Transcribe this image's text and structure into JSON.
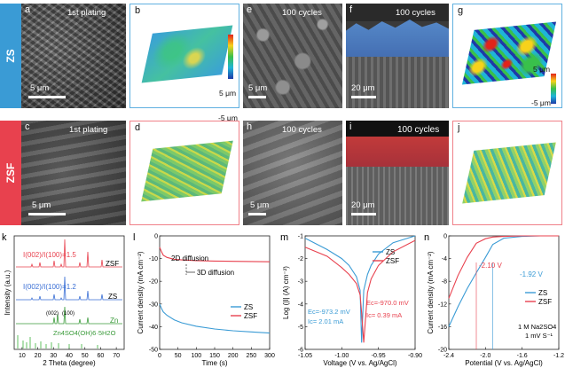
{
  "sidebar": {
    "zs": "ZS",
    "zsf": "ZSF"
  },
  "colors": {
    "zs_blue": "#3a9bd5",
    "zsf_red": "#e8414e",
    "panel_border_blue": "#5fb0e0",
    "panel_border_red": "#f08088"
  },
  "row1": {
    "a": {
      "letter": "a",
      "caption": "1st plating",
      "scale": "5 μm"
    },
    "b": {
      "letter": "b",
      "cb_top": "5 μm",
      "cb_bottom": "-5 μm"
    },
    "e": {
      "letter": "e",
      "caption": "100 cycles",
      "scale": "5 μm"
    },
    "f": {
      "letter": "f",
      "caption": "100 cycles",
      "scale": "20 μm"
    },
    "g": {
      "letter": "g",
      "cb_top": "5 μm",
      "cb_bottom": "-5 μm"
    }
  },
  "row2": {
    "c": {
      "letter": "c",
      "caption": "1st plating",
      "scale": "5 μm"
    },
    "d": {
      "letter": "d"
    },
    "h": {
      "letter": "h",
      "caption": "100 cycles",
      "scale": "5 μm"
    },
    "i": {
      "letter": "i",
      "caption": "100 cycles",
      "scale": "20 μm"
    },
    "j": {
      "letter": "j"
    }
  },
  "panel_k": {
    "letter": "k",
    "xlabel": "2 Theta (degree)",
    "ylabel": "Intensity (a.u.)",
    "xticks": [
      "10",
      "20",
      "30",
      "40",
      "50",
      "60",
      "70"
    ],
    "ratio_zsf": "I(002)/I(100)=1.5",
    "ratio_zs": "I(002)/I(100)=1.2",
    "label_zsf": "ZSF",
    "label_zs": "ZS",
    "label_zn": "Zn",
    "label_ref": "Zn4SO4(OH)6·5H2O",
    "peak_002": "(002)",
    "peak_100": "(100)"
  },
  "panel_l": {
    "letter": "l",
    "xlabel": "Time (s)",
    "ylabel": "Current density (mA cm⁻²)",
    "xticks": [
      "0",
      "50",
      "100",
      "150",
      "200",
      "250",
      "300"
    ],
    "yticks": [
      "0",
      "-10",
      "-20",
      "-30",
      "-40",
      "-50"
    ],
    "ann_2d": "2D diffusion",
    "ann_3d": "3D diffusion",
    "legend": [
      "ZS",
      "ZSF"
    ]
  },
  "panel_m": {
    "letter": "m",
    "xlabel": "Voltage (V vs. Ag/AgCl)",
    "ylabel": "Log (|I| (A) cm⁻²)",
    "xticks": [
      "-1.05",
      "-1.00",
      "-0.95",
      "-0.90"
    ],
    "yticks": [
      "-1",
      "-2",
      "-3",
      "-4",
      "-5",
      "-6"
    ],
    "ec_zs": "Ec=-973.2 mV",
    "ic_zs": "Ic= 2.01 mA",
    "ec_zsf": "Ec=-970.0 mV",
    "ic_zsf": "Ic= 0.39 mA",
    "legend": [
      "ZS",
      "ZSF"
    ]
  },
  "panel_n": {
    "letter": "n",
    "xlabel": "Potential (V vs. Ag/AgCl)",
    "ylabel": "Current density (mA cm⁻²)",
    "xticks": [
      "-2.4",
      "-2.0",
      "-1.6",
      "-1.2"
    ],
    "yticks": [
      "0",
      "-4",
      "-8",
      "-12",
      "-16",
      "-20"
    ],
    "ann_zsf": "-2.10 V",
    "ann_zs": "-1.92 V",
    "legend": [
      "ZS",
      "ZSF"
    ],
    "cond1": "1 M Na2SO4",
    "cond2": "1 mV S⁻¹"
  },
  "chart_data": [
    {
      "type": "line",
      "panel": "l",
      "xlabel": "Time (s)",
      "ylabel": "Current density (mA cm⁻²)",
      "xlim": [
        0,
        300
      ],
      "ylim": [
        -50,
        0
      ],
      "x": [
        0,
        5,
        10,
        20,
        40,
        60,
        100,
        150,
        200,
        250,
        300
      ],
      "series": [
        {
          "name": "ZS",
          "values": [
            -30,
            -32,
            -33.5,
            -35,
            -37,
            -38.3,
            -39.8,
            -41,
            -41.8,
            -42.3,
            -42.8
          ]
        },
        {
          "name": "ZSF",
          "values": [
            -5,
            -7,
            -8.5,
            -9.5,
            -10.3,
            -10.6,
            -10.9,
            -11.1,
            -11.2,
            -11.3,
            -11.4
          ]
        }
      ]
    },
    {
      "type": "line",
      "panel": "m",
      "xlabel": "Voltage (V vs. Ag/AgCl)",
      "ylabel": "Log (|I| (A) cm⁻²)",
      "xlim": [
        -1.05,
        -0.9
      ],
      "ylim": [
        -6,
        -1
      ],
      "x": [
        -1.05,
        -1.02,
        -1.0,
        -0.99,
        -0.98,
        -0.975,
        -0.973,
        -0.97,
        -0.965,
        -0.96,
        -0.95,
        -0.93,
        -0.9
      ],
      "series": [
        {
          "name": "ZS",
          "values": [
            -1.1,
            -1.6,
            -2.0,
            -2.3,
            -2.8,
            -3.4,
            -5.7,
            -3.4,
            -2.7,
            -2.3,
            -1.8,
            -1.3,
            -1.0
          ]
        },
        {
          "name": "ZSF",
          "values": [
            -1.5,
            -1.9,
            -2.4,
            -2.7,
            -3.1,
            -3.6,
            -4.4,
            -5.7,
            -3.5,
            -2.9,
            -2.3,
            -1.7,
            -1.2
          ]
        }
      ]
    },
    {
      "type": "line",
      "panel": "n",
      "xlabel": "Potential (V vs. Ag/AgCl)",
      "ylabel": "Current density (mA cm⁻²)",
      "xlim": [
        -2.4,
        -1.2
      ],
      "ylim": [
        -20,
        0
      ],
      "x": [
        -2.4,
        -2.3,
        -2.2,
        -2.1,
        -2.0,
        -1.92,
        -1.8,
        -1.6,
        -1.4,
        -1.2
      ],
      "series": [
        {
          "name": "ZS",
          "values": [
            -16,
            -12.5,
            -9.3,
            -6.5,
            -3.8,
            -1.5,
            -0.4,
            -0.1,
            0,
            0
          ]
        },
        {
          "name": "ZSF",
          "values": [
            -11,
            -7,
            -3.8,
            -1.3,
            -0.5,
            -0.2,
            -0.1,
            0,
            0,
            0
          ]
        }
      ]
    }
  ]
}
